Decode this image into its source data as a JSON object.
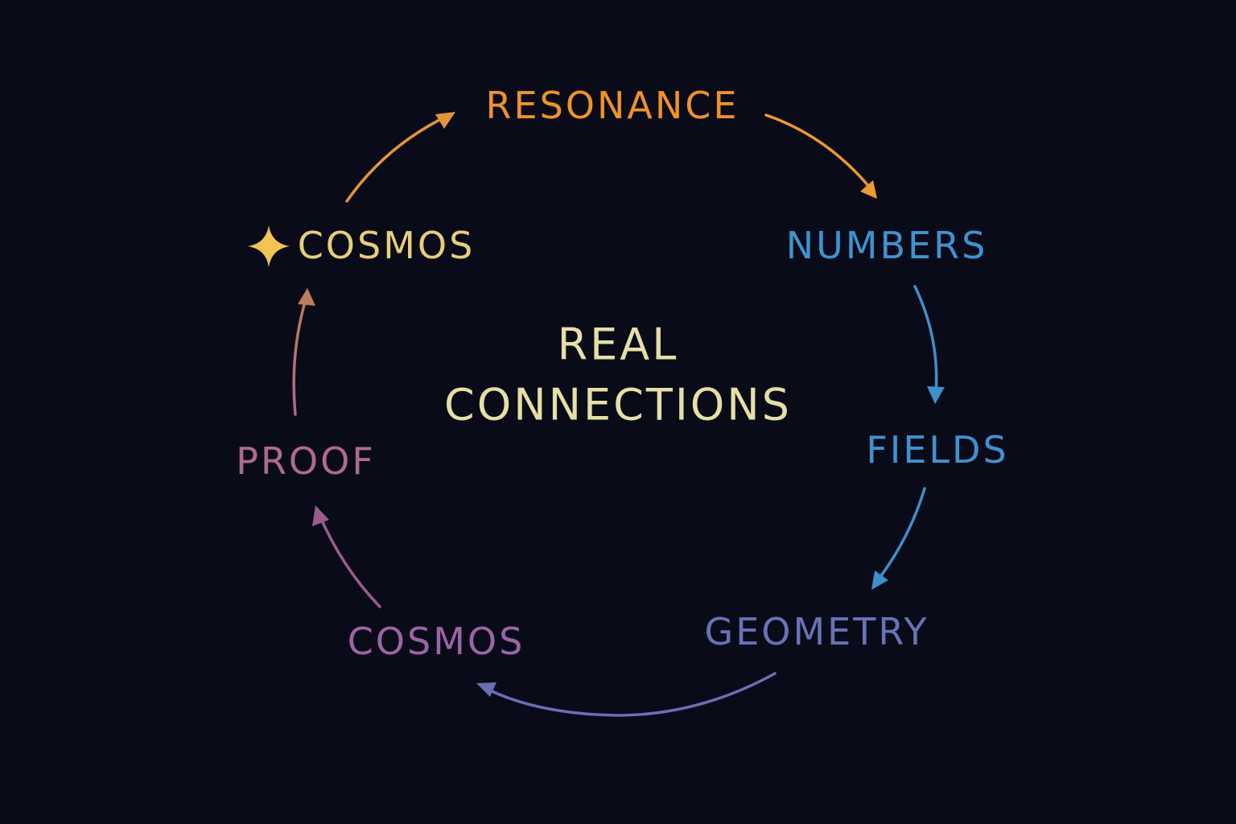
{
  "colors": {
    "background": "#0a0b18",
    "center_text": "#e6dfa6",
    "spark": "#f2c452"
  },
  "center": {
    "line1": "REAL",
    "line2": "CONNECTIONS"
  },
  "nodes": {
    "resonance": {
      "label": "RESONANCE",
      "color": "#ee922c"
    },
    "numbers": {
      "label": "NUMBERS",
      "color": "#3f92d0"
    },
    "fields": {
      "label": "FIELDS",
      "color": "#3f92d0"
    },
    "geometry": {
      "label": "GEOMETRY",
      "color": "#6872b8"
    },
    "cosmos_b": {
      "label": "COSMOS",
      "color": "#9c64a6"
    },
    "proof": {
      "label": "PROOF",
      "color": "#ae6a8e"
    },
    "cosmos_a": {
      "label": "COSMOS",
      "color": "#e6cf7a"
    }
  },
  "spark_icon": "four-point-star-icon",
  "edges": [
    {
      "from": "cosmos_a",
      "to": "resonance",
      "color": "#e3953a"
    },
    {
      "from": "resonance",
      "to": "numbers",
      "color": "#ee9a2e"
    },
    {
      "from": "numbers",
      "to": "fields",
      "color": "#3f8fcd"
    },
    {
      "from": "fields",
      "to": "geometry",
      "color": "#3f8fcd"
    },
    {
      "from": "geometry",
      "to": "cosmos_b",
      "color": "#6a6fb4"
    },
    {
      "from": "cosmos_b",
      "to": "proof",
      "color": "#9b5b8a"
    },
    {
      "from": "proof",
      "to": "cosmos_a",
      "color": "#b0705e"
    }
  ]
}
